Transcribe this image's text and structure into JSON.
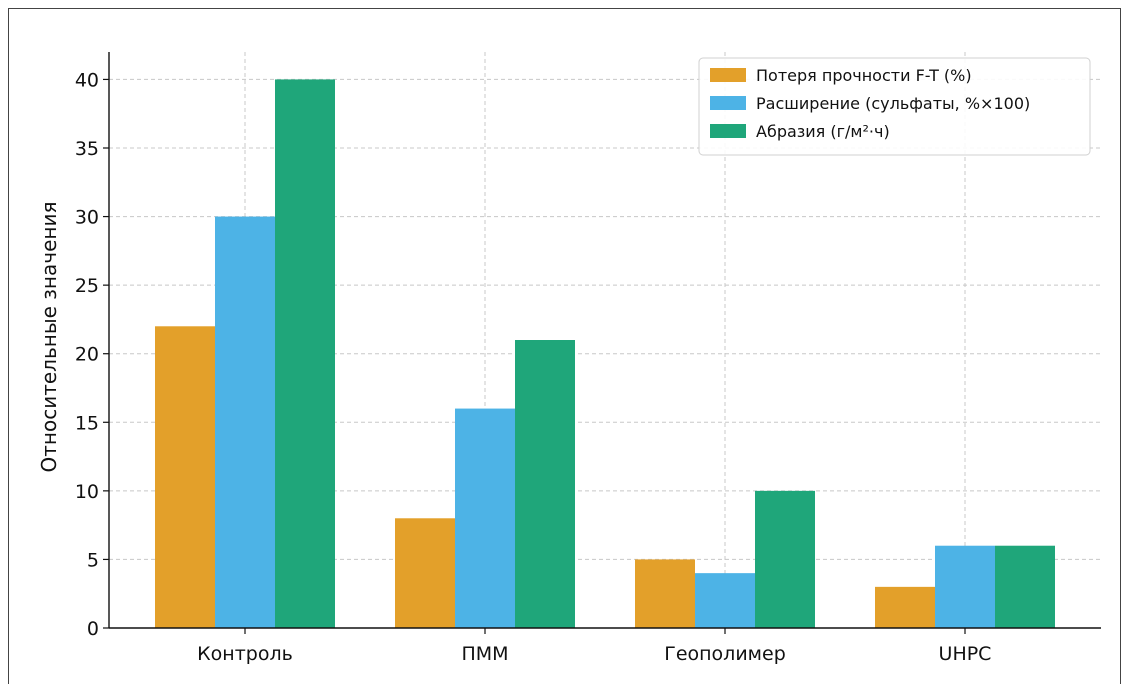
{
  "chart_data": {
    "type": "bar",
    "categories": [
      "Контроль",
      "ПММ",
      "Геополимер",
      "UHPC"
    ],
    "series": [
      {
        "name": "Потеря прочности F-T (%)",
        "values": [
          22,
          8,
          5,
          3
        ],
        "color": "#E3A02A"
      },
      {
        "name": "Расширение (сульфаты, %×100)",
        "values": [
          30,
          16,
          4,
          6
        ],
        "color": "#4DB3E6"
      },
      {
        "name": "Абразия (г/м²·ч)",
        "values": [
          40,
          21,
          10,
          6
        ],
        "color": "#1FA67A"
      }
    ],
    "ylabel": "Относительные значения",
    "xlabel": "",
    "ylim": [
      0,
      42
    ],
    "yticks": [
      0,
      5,
      10,
      15,
      20,
      25,
      30,
      35,
      40
    ],
    "grid": true,
    "legend_position": "top-right"
  }
}
